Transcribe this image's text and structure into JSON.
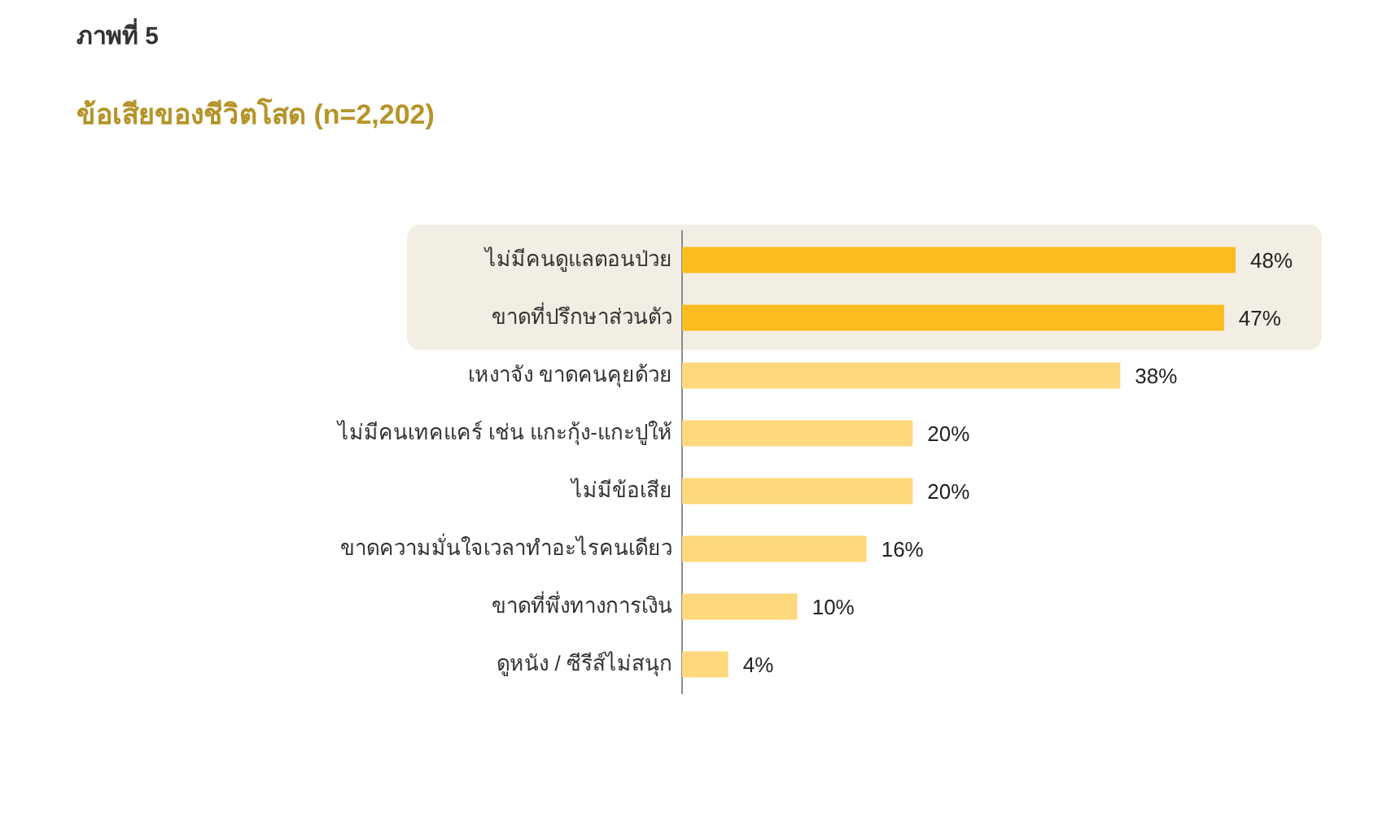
{
  "chart_data": {
    "type": "bar",
    "orientation": "horizontal",
    "title": "ภาพที่ 5",
    "subtitle": "ข้อเสียของชีวิตโสด (n=2,202)",
    "categories": [
      "ไม่มีคนดูแลตอนป่วย",
      "ขาดที่ปรึกษาส่วนตัว",
      "เหงาจัง ขาดคนคุยด้วย",
      "ไม่มีคนเทคแคร์ เช่น แกะกุ้ง-แกะปูให้",
      "ไม่มีข้อเสีย",
      "ขาดความมั่นใจเวลาทำอะไรคนเดียว",
      "ขาดที่พึ่งทางการเงิน",
      "ดูหนัง / ซีรีส์ไม่สนุก"
    ],
    "values": [
      48,
      47,
      38,
      20,
      20,
      16,
      10,
      4
    ],
    "colors": [
      "#fbbc1f",
      "#fbbc1f",
      "#fdd87d",
      "#fdd87d",
      "#fdd87d",
      "#fdd87d",
      "#fdd87d",
      "#fdd87d"
    ],
    "value_labels": [
      "48%",
      "47%",
      "38%",
      "20%",
      "20%",
      "16%",
      "10%",
      "4%"
    ],
    "xlim": [
      0,
      48
    ],
    "tick_labels": "y",
    "bands": [
      {
        "axis": "y",
        "from": "ไม่มีคนดูแลตอนป่วย",
        "to": "ขาดที่ปรึกษาส่วนตัว",
        "color": "#f3eee4"
      }
    ]
  }
}
